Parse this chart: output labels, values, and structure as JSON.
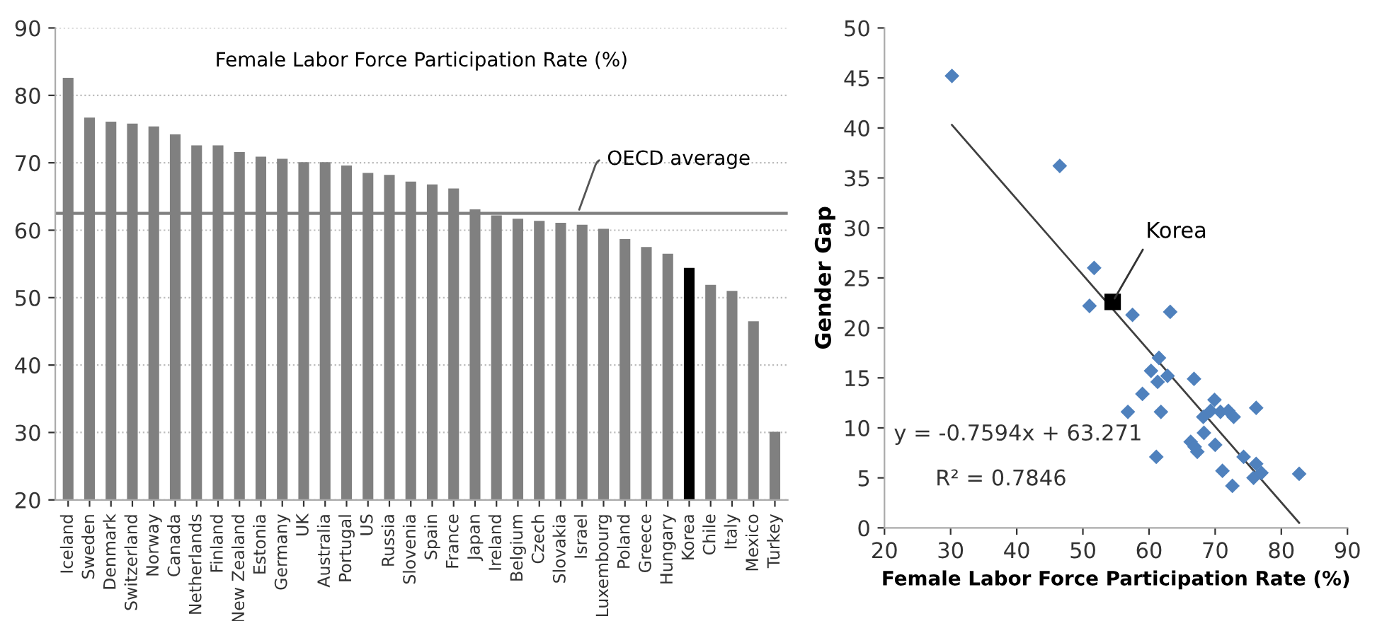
{
  "chart_data": [
    {
      "type": "bar",
      "title": "Female Labor Force Participation Rate (%)",
      "categories": [
        "Iceland",
        "Sweden",
        "Denmark",
        "Switzerland",
        "Norway",
        "Canada",
        "Netherlands",
        "Finland",
        "New Zealand",
        "Estonia",
        "Germany",
        "UK",
        "Australia",
        "Portugal",
        "US",
        "Russia",
        "Slovenia",
        "Spain",
        "France",
        "Japan",
        "Ireland",
        "Belgium",
        "Czech",
        "Slovakia",
        "Israel",
        "Luxembourg",
        "Poland",
        "Greece",
        "Hungary",
        "Korea",
        "Chile",
        "Italy",
        "Mexico",
        "Turkey"
      ],
      "series": [
        {
          "values": [
            82.6,
            76.7,
            76.1,
            75.8,
            75.4,
            74.2,
            72.6,
            72.6,
            71.6,
            70.9,
            70.6,
            70.1,
            70.1,
            69.6,
            68.5,
            68.2,
            67.2,
            66.8,
            66.2,
            63.1,
            62.2,
            61.7,
            61.4,
            61.1,
            60.8,
            60.2,
            58.7,
            57.5,
            56.5,
            54.4,
            51.9,
            51.0,
            46.5,
            30.1
          ],
          "colors": [
            "#808080",
            "#808080",
            "#808080",
            "#808080",
            "#808080",
            "#808080",
            "#808080",
            "#808080",
            "#808080",
            "#808080",
            "#808080",
            "#808080",
            "#808080",
            "#808080",
            "#808080",
            "#808080",
            "#808080",
            "#808080",
            "#808080",
            "#808080",
            "#808080",
            "#808080",
            "#808080",
            "#808080",
            "#808080",
            "#808080",
            "#808080",
            "#808080",
            "#808080",
            "#000000",
            "#808080",
            "#808080",
            "#808080",
            "#808080"
          ]
        }
      ],
      "ylim": [
        20,
        90
      ],
      "yticks": [
        20,
        30,
        40,
        50,
        60,
        70,
        80,
        90
      ],
      "grid": "y",
      "ref_lines": [
        {
          "axis": "y",
          "value": 62.5,
          "label": "OECD average",
          "color": "#808080"
        }
      ]
    },
    {
      "type": "scatter",
      "xlabel": "Female Labor Force Participation Rate (%)",
      "ylabel": "Gender Gap",
      "series": [
        {
          "type": "scatter",
          "marker": "diamond",
          "color": "#4f81bd",
          "x": [
            30.2,
            46.5,
            51.7,
            51,
            57.5,
            63.2,
            61.5,
            60.3,
            62.8,
            61.3,
            59,
            56.8,
            61.8,
            61.1,
            66.8,
            69.9,
            69.3,
            70.8,
            72,
            72.8,
            76.2,
            68.2,
            68.3,
            66.3,
            66.9,
            67.3,
            70,
            74.3,
            71.1,
            72.6,
            76.2,
            75.8,
            77,
            82.7
          ],
          "values": [
            45.2,
            36.2,
            26,
            22.2,
            21.3,
            21.6,
            17,
            15.7,
            15.2,
            14.6,
            13.4,
            11.6,
            11.6,
            7.1,
            14.9,
            12.8,
            11.7,
            11.6,
            11.7,
            11.1,
            12,
            11.1,
            9.5,
            8.6,
            8.1,
            7.6,
            8.3,
            7.1,
            5.7,
            4.2,
            6.4,
            5,
            5.5,
            5.4
          ]
        },
        {
          "type": "scatter",
          "marker": "square",
          "color": "#000000",
          "x": [
            54.5
          ],
          "values": [
            22.6
          ]
        },
        {
          "type": "line",
          "color": "#404040",
          "x": [
            30.2,
            82.7
          ],
          "values": [
            40.3,
            0.5
          ]
        }
      ],
      "xlim": [
        20,
        90
      ],
      "xticks": [
        20,
        30,
        40,
        50,
        60,
        70,
        80,
        90
      ],
      "ylim": [
        0,
        50
      ],
      "yticks": [
        0,
        5,
        10,
        15,
        20,
        25,
        30,
        35,
        40,
        45,
        50
      ],
      "grid": false,
      "annotations": [
        {
          "text": "Korea",
          "x": 54.5,
          "y": 22.6
        },
        "y = -0.7594x + 63.271",
        "R² = 0.7846"
      ]
    }
  ]
}
